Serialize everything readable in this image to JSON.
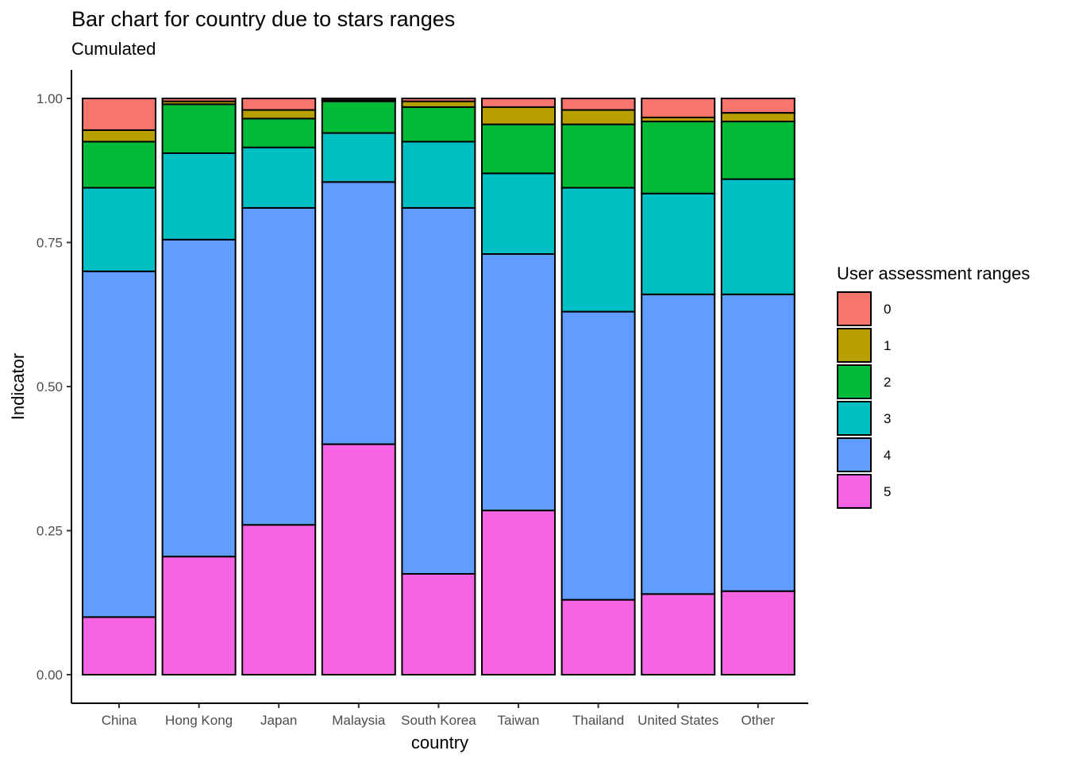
{
  "chart_data": {
    "type": "bar",
    "stacked": true,
    "title": "Bar chart for country due to stars ranges",
    "subtitle": "Cumulated",
    "xlabel": "country",
    "ylabel": "Indicator",
    "ylim": [
      0,
      1
    ],
    "yticks": [
      0,
      0.25,
      0.5,
      0.75,
      1
    ],
    "ytick_labels": [
      "0.00",
      "0.25",
      "0.50",
      "0.75",
      "1.00"
    ],
    "categories": [
      "China",
      "Hong Kong",
      "Japan",
      "Malaysia",
      "South Korea",
      "Taiwan",
      "Thailand",
      "United States",
      "Other"
    ],
    "legend": {
      "title": "User assessment ranges",
      "position": "right"
    },
    "grid": false,
    "series": [
      {
        "name": "5",
        "color": "#F564E3",
        "values": [
          0.1,
          0.205,
          0.26,
          0.4,
          0.175,
          0.285,
          0.13,
          0.14,
          0.145
        ]
      },
      {
        "name": "4",
        "color": "#619CFF",
        "values": [
          0.6,
          0.55,
          0.55,
          0.455,
          0.635,
          0.445,
          0.5,
          0.52,
          0.515
        ]
      },
      {
        "name": "3",
        "color": "#00BFC4",
        "values": [
          0.145,
          0.15,
          0.105,
          0.085,
          0.115,
          0.14,
          0.215,
          0.175,
          0.2
        ]
      },
      {
        "name": "2",
        "color": "#00BA38",
        "values": [
          0.08,
          0.085,
          0.05,
          0.055,
          0.06,
          0.085,
          0.11,
          0.125,
          0.1
        ]
      },
      {
        "name": "1",
        "color": "#B79F00",
        "values": [
          0.02,
          0.005,
          0.015,
          0.002,
          0.01,
          0.03,
          0.025,
          0.007,
          0.015
        ]
      },
      {
        "name": "0",
        "color": "#F8766D",
        "values": [
          0.055,
          0.005,
          0.02,
          0.003,
          0.005,
          0.015,
          0.02,
          0.033,
          0.025
        ]
      }
    ]
  }
}
